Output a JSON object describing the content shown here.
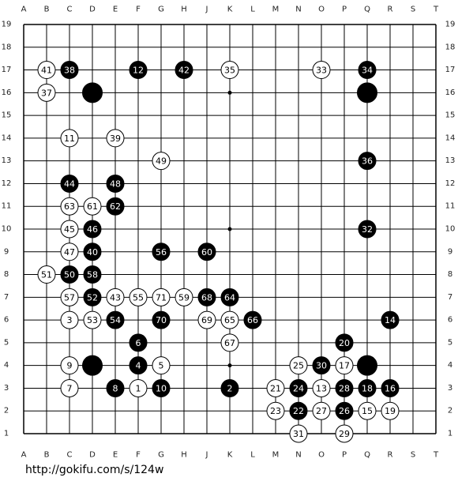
{
  "board": {
    "columns": [
      "A",
      "B",
      "C",
      "D",
      "E",
      "F",
      "G",
      "H",
      "J",
      "K",
      "L",
      "M",
      "N",
      "O",
      "P",
      "Q",
      "R",
      "S",
      "T"
    ],
    "rows": [
      19,
      18,
      17,
      16,
      15,
      14,
      13,
      12,
      11,
      10,
      9,
      8,
      7,
      6,
      5,
      4,
      3,
      2,
      1
    ],
    "star_points": [
      [
        "D",
        4
      ],
      [
        "K",
        4
      ],
      [
        "Q",
        4
      ],
      [
        "D",
        10
      ],
      [
        "K",
        10
      ],
      [
        "Q",
        10
      ],
      [
        "D",
        16
      ],
      [
        "K",
        16
      ],
      [
        "Q",
        16
      ]
    ],
    "stones": [
      {
        "x": "B",
        "y": 17,
        "color": "white",
        "label": 41
      },
      {
        "x": "C",
        "y": 17,
        "color": "black",
        "label": 38
      },
      {
        "x": "F",
        "y": 17,
        "color": "black",
        "label": 12
      },
      {
        "x": "H",
        "y": 17,
        "color": "black",
        "label": 42
      },
      {
        "x": "K",
        "y": 17,
        "color": "white",
        "label": 35
      },
      {
        "x": "O",
        "y": 17,
        "color": "white",
        "label": 33
      },
      {
        "x": "Q",
        "y": 17,
        "color": "black",
        "label": 34
      },
      {
        "x": "B",
        "y": 16,
        "color": "white",
        "label": 37
      },
      {
        "x": "D",
        "y": 16,
        "color": "black"
      },
      {
        "x": "Q",
        "y": 16,
        "color": "black"
      },
      {
        "x": "C",
        "y": 14,
        "color": "white",
        "label": 11
      },
      {
        "x": "E",
        "y": 14,
        "color": "white",
        "label": 39
      },
      {
        "x": "G",
        "y": 13,
        "color": "white",
        "label": 49
      },
      {
        "x": "Q",
        "y": 13,
        "color": "black",
        "label": 36
      },
      {
        "x": "C",
        "y": 12,
        "color": "black",
        "label": 44
      },
      {
        "x": "E",
        "y": 12,
        "color": "black",
        "label": 48
      },
      {
        "x": "C",
        "y": 11,
        "color": "white",
        "label": 63
      },
      {
        "x": "D",
        "y": 11,
        "color": "white",
        "label": 61
      },
      {
        "x": "E",
        "y": 11,
        "color": "black",
        "label": 62
      },
      {
        "x": "C",
        "y": 10,
        "color": "white",
        "label": 45
      },
      {
        "x": "D",
        "y": 10,
        "color": "black",
        "label": 46
      },
      {
        "x": "Q",
        "y": 10,
        "color": "black",
        "label": 32
      },
      {
        "x": "C",
        "y": 9,
        "color": "white",
        "label": 47
      },
      {
        "x": "D",
        "y": 9,
        "color": "black",
        "label": 40
      },
      {
        "x": "G",
        "y": 9,
        "color": "black",
        "label": 56
      },
      {
        "x": "J",
        "y": 9,
        "color": "black",
        "label": 60
      },
      {
        "x": "B",
        "y": 8,
        "color": "white",
        "label": 51
      },
      {
        "x": "C",
        "y": 8,
        "color": "black",
        "label": 50
      },
      {
        "x": "D",
        "y": 8,
        "color": "black",
        "label": 58
      },
      {
        "x": "C",
        "y": 7,
        "color": "white",
        "label": 57
      },
      {
        "x": "D",
        "y": 7,
        "color": "black",
        "label": 52
      },
      {
        "x": "E",
        "y": 7,
        "color": "white",
        "label": 43
      },
      {
        "x": "F",
        "y": 7,
        "color": "white",
        "label": 55
      },
      {
        "x": "G",
        "y": 7,
        "color": "white",
        "label": 71
      },
      {
        "x": "H",
        "y": 7,
        "color": "white",
        "label": 59
      },
      {
        "x": "J",
        "y": 7,
        "color": "black",
        "label": 68
      },
      {
        "x": "K",
        "y": 7,
        "color": "black",
        "label": 64
      },
      {
        "x": "C",
        "y": 6,
        "color": "white",
        "label": 3
      },
      {
        "x": "D",
        "y": 6,
        "color": "white",
        "label": 53
      },
      {
        "x": "E",
        "y": 6,
        "color": "black",
        "label": 54
      },
      {
        "x": "G",
        "y": 6,
        "color": "black",
        "label": 70
      },
      {
        "x": "J",
        "y": 6,
        "color": "white",
        "label": 69
      },
      {
        "x": "K",
        "y": 6,
        "color": "white",
        "label": 65
      },
      {
        "x": "L",
        "y": 6,
        "color": "black",
        "label": 66
      },
      {
        "x": "R",
        "y": 6,
        "color": "black",
        "label": 14
      },
      {
        "x": "F",
        "y": 5,
        "color": "black",
        "label": 6
      },
      {
        "x": "K",
        "y": 5,
        "color": "white",
        "label": 67
      },
      {
        "x": "P",
        "y": 5,
        "color": "black",
        "label": 20
      },
      {
        "x": "C",
        "y": 4,
        "color": "white",
        "label": 9
      },
      {
        "x": "D",
        "y": 4,
        "color": "black"
      },
      {
        "x": "F",
        "y": 4,
        "color": "black",
        "label": 4
      },
      {
        "x": "G",
        "y": 4,
        "color": "white",
        "label": 5
      },
      {
        "x": "N",
        "y": 4,
        "color": "white",
        "label": 25
      },
      {
        "x": "O",
        "y": 4,
        "color": "black",
        "label": 30
      },
      {
        "x": "P",
        "y": 4,
        "color": "white",
        "label": 17
      },
      {
        "x": "Q",
        "y": 4,
        "color": "black"
      },
      {
        "x": "C",
        "y": 3,
        "color": "white",
        "label": 7
      },
      {
        "x": "E",
        "y": 3,
        "color": "black",
        "label": 8
      },
      {
        "x": "F",
        "y": 3,
        "color": "white",
        "label": 1
      },
      {
        "x": "G",
        "y": 3,
        "color": "black",
        "label": 10
      },
      {
        "x": "K",
        "y": 3,
        "color": "black",
        "label": 2
      },
      {
        "x": "M",
        "y": 3,
        "color": "white",
        "label": 21
      },
      {
        "x": "N",
        "y": 3,
        "color": "black",
        "label": 24
      },
      {
        "x": "O",
        "y": 3,
        "color": "white",
        "label": 13
      },
      {
        "x": "P",
        "y": 3,
        "color": "black",
        "label": 28
      },
      {
        "x": "Q",
        "y": 3,
        "color": "black",
        "label": 18
      },
      {
        "x": "R",
        "y": 3,
        "color": "black",
        "label": 16
      },
      {
        "x": "M",
        "y": 2,
        "color": "white",
        "label": 23
      },
      {
        "x": "N",
        "y": 2,
        "color": "black",
        "label": 22
      },
      {
        "x": "O",
        "y": 2,
        "color": "white",
        "label": 27
      },
      {
        "x": "P",
        "y": 2,
        "color": "black",
        "label": 26
      },
      {
        "x": "Q",
        "y": 2,
        "color": "white",
        "label": 15
      },
      {
        "x": "R",
        "y": 2,
        "color": "white",
        "label": 19
      },
      {
        "x": "N",
        "y": 1,
        "color": "white",
        "label": 31
      },
      {
        "x": "P",
        "y": 1,
        "color": "white",
        "label": 29
      }
    ]
  },
  "footer": {
    "url": "http://gokifu.com/s/124w"
  }
}
